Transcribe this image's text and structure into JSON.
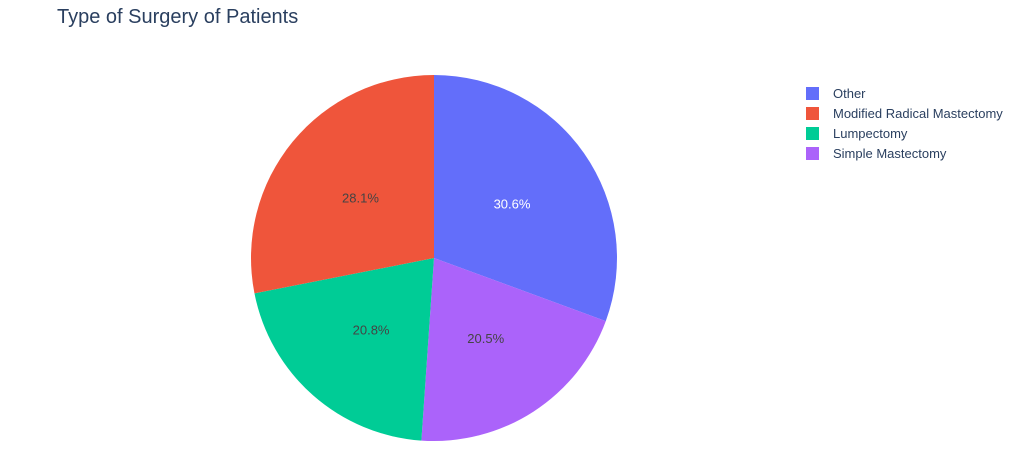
{
  "chart_data": {
    "type": "pie",
    "title": "Type of Surgery of Patients",
    "slices": [
      {
        "name": "Other",
        "percent": 30.6,
        "label": "30.6%",
        "color": "#636efa",
        "label_color": "#ffffff"
      },
      {
        "name": "Modified Radical Mastectomy",
        "percent": 28.1,
        "label": "28.1%",
        "color": "#ef553b",
        "label_color": "#444444"
      },
      {
        "name": "Lumpectomy",
        "percent": 20.8,
        "label": "20.8%",
        "color": "#00cc96",
        "label_color": "#444444"
      },
      {
        "name": "Simple Mastectomy",
        "percent": 20.5,
        "label": "20.5%",
        "color": "#ab63fa",
        "label_color": "#444444"
      }
    ],
    "slice_order_clockwise_from_top": [
      "Other",
      "Simple Mastectomy",
      "Lumpectomy",
      "Modified Radical Mastectomy"
    ],
    "legend_position": "top-right"
  }
}
